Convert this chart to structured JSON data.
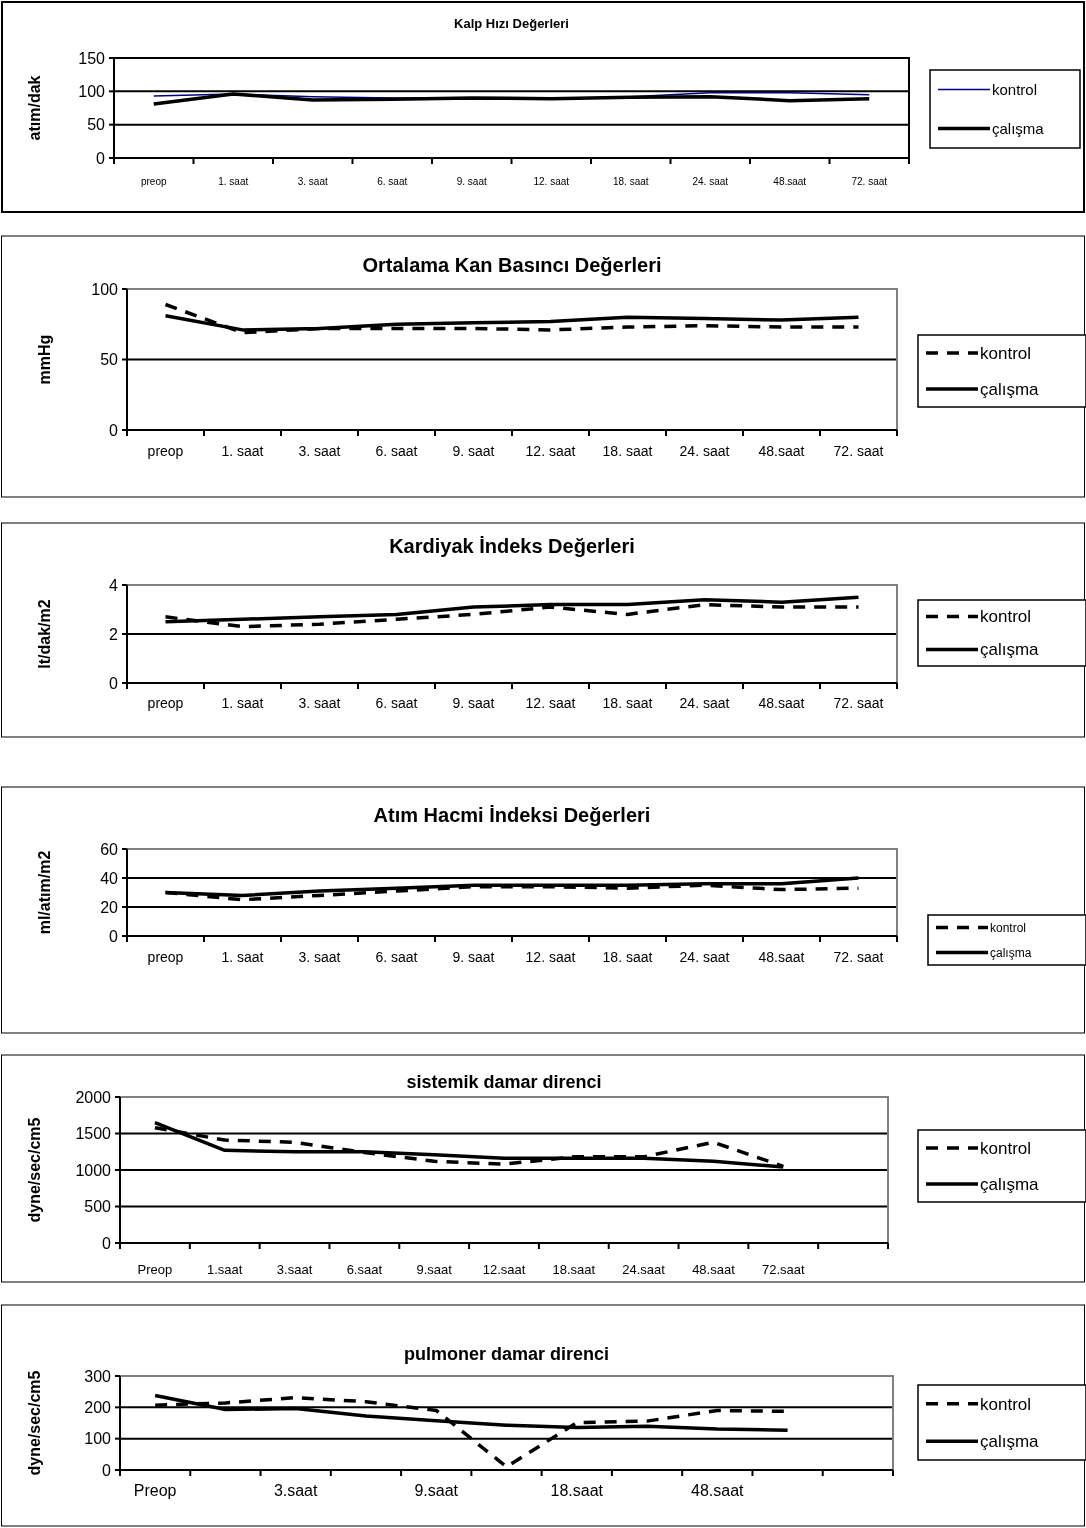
{
  "chart_data": [
    {
      "type": "line",
      "title": "Kalp Hızı Değerleri",
      "ylabel": "atım/dak",
      "categories": [
        "preop",
        "1. saat",
        "3. saat",
        "6. saat",
        "9. saat",
        "12. saat",
        "18. saat",
        "24. saat",
        "48.saat",
        "72. saat"
      ],
      "ylim": [
        0,
        150
      ],
      "yticks": [
        0,
        50,
        100,
        150
      ],
      "grid": "y",
      "legend": "right",
      "series": [
        {
          "name": "kontrol",
          "color": "#000080",
          "line_style": "solid",
          "values": [
            93,
            96,
            92,
            90,
            90,
            null,
            92,
            98,
            98,
            95
          ]
        },
        {
          "name": "çalışma",
          "color": "#000000",
          "line_style": "solid",
          "values": [
            81,
            96,
            87,
            88,
            90,
            89,
            91,
            92,
            86,
            89
          ]
        }
      ]
    },
    {
      "type": "line",
      "title": "Ortalama Kan Basıncı Değerleri",
      "ylabel": "mmHg",
      "categories": [
        "preop",
        "1. saat",
        "3. saat",
        "6. saat",
        "9. saat",
        "12. saat",
        "18. saat",
        "24. saat",
        "48.saat",
        "72. saat"
      ],
      "ylim": [
        0,
        100
      ],
      "yticks": [
        0,
        50,
        100
      ],
      "grid": "y",
      "legend": "right",
      "series": [
        {
          "name": "kontrol",
          "color": "#000000",
          "line_style": "dashed",
          "values": [
            89,
            69,
            72,
            72,
            72,
            71,
            73,
            74,
            73,
            73
          ]
        },
        {
          "name": "çalışma",
          "color": "#000000",
          "line_style": "solid",
          "values": [
            81,
            71,
            72,
            75,
            76,
            77,
            80,
            79,
            78,
            80
          ]
        }
      ]
    },
    {
      "type": "line",
      "title": "Kardiyak İndeks Değerleri",
      "ylabel": "lt/dak/m2",
      "categories": [
        "preop",
        "1. saat",
        "3. saat",
        "6. saat",
        "9. saat",
        "12. saat",
        "18. saat",
        "24. saat",
        "48.saat",
        "72. saat"
      ],
      "ylim": [
        0,
        4
      ],
      "yticks": [
        0,
        2,
        4
      ],
      "grid": "y",
      "legend": "right",
      "series": [
        {
          "name": "kontrol",
          "color": "#000000",
          "line_style": "dashed",
          "values": [
            2.7,
            2.3,
            2.4,
            2.6,
            2.8,
            3.1,
            2.8,
            3.2,
            3.1,
            3.1
          ]
        },
        {
          "name": "çalışma",
          "color": "#000000",
          "line_style": "solid",
          "values": [
            2.5,
            2.6,
            2.7,
            2.8,
            3.1,
            3.2,
            3.2,
            3.4,
            3.3,
            3.5
          ]
        }
      ]
    },
    {
      "type": "line",
      "title": "Atım Hacmi İndeksi Değerleri",
      "ylabel": "ml/atım/m2",
      "categories": [
        "preop",
        "1. saat",
        "3. saat",
        "6. saat",
        "9. saat",
        "12. saat",
        "18. saat",
        "24. saat",
        "48.saat",
        "72. saat"
      ],
      "ylim": [
        0,
        60
      ],
      "yticks": [
        0,
        20,
        40,
        60
      ],
      "grid": "y",
      "legend": "right",
      "series": [
        {
          "name": "kontrol",
          "color": "#000000",
          "line_style": "dashed",
          "values": [
            30,
            25,
            28,
            31,
            34,
            34,
            33,
            35,
            32,
            33
          ]
        },
        {
          "name": "çalışma",
          "color": "#000000",
          "line_style": "solid",
          "values": [
            30,
            28,
            31,
            33,
            35,
            35,
            35,
            36,
            36,
            40
          ]
        }
      ]
    },
    {
      "type": "line",
      "title": "sistemik  damar direnci",
      "ylabel": "dyne/sec/cm5",
      "categories": [
        "Preop",
        "1.saat",
        "3.saat",
        "6.saat",
        "9.saat",
        "12.saat",
        "18.saat",
        "24.saat",
        "48.saat",
        "72.saat",
        null
      ],
      "ylim": [
        0,
        2000
      ],
      "yticks": [
        0,
        500,
        1000,
        1500,
        2000
      ],
      "grid": "y",
      "legend": "right",
      "series": [
        {
          "name": "kontrol",
          "color": "#000000",
          "line_style": "dashed",
          "values": [
            1580,
            1410,
            1380,
            1240,
            1120,
            1080,
            1180,
            1180,
            1380,
            1050,
            null
          ]
        },
        {
          "name": "çalışma",
          "color": "#000000",
          "line_style": "solid",
          "values": [
            1650,
            1270,
            1250,
            1250,
            1210,
            1160,
            1160,
            1160,
            1120,
            1040,
            null
          ]
        }
      ]
    },
    {
      "type": "line",
      "title": "pulmoner damar direnci",
      "ylabel": "dyne/sec/cm5",
      "categories": [
        "Preop",
        null,
        "3.saat",
        null,
        "9.saat",
        null,
        "18.saat",
        null,
        "48.saat",
        null,
        null
      ],
      "ylim": [
        0,
        300
      ],
      "yticks": [
        0,
        100,
        200,
        300
      ],
      "grid": "y",
      "legend": "right",
      "series": [
        {
          "name": "kontrol",
          "color": "#000000",
          "line_style": "dashed",
          "values": [
            207,
            214,
            231,
            218,
            190,
            10,
            151,
            156,
            190,
            187,
            null
          ]
        },
        {
          "name": "çalışma",
          "color": "#000000",
          "line_style": "solid",
          "values": [
            238,
            193,
            196,
            172,
            157,
            143,
            136,
            140,
            131,
            127,
            null
          ]
        }
      ]
    }
  ]
}
